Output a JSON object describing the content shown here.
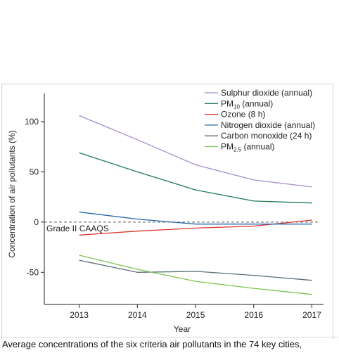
{
  "chart_data": {
    "type": "line",
    "xlabel": "Year",
    "ylabel": "Concentration of air pollutants (%)",
    "x": [
      2013,
      2014,
      2015,
      2016,
      2017
    ],
    "xlim": [
      2012.4,
      2017.2
    ],
    "ylim": [
      -82,
      128
    ],
    "yticks": [
      100,
      50,
      0,
      -50
    ],
    "ytick_labels": [
      "100",
      "50",
      "0",
      "-50"
    ],
    "xtick_labels": [
      "2013",
      "2014",
      "2015",
      "2016",
      "2017"
    ],
    "grid": false,
    "legend_position": "top-right",
    "reference_line": {
      "y": 0,
      "label": "Grade II CAAQS",
      "style": "dashed",
      "color": "#7a7a7a"
    },
    "series": [
      {
        "name": "Sulphur dioxide (annual)",
        "color": "#a58bcd",
        "values": [
          106,
          82,
          57,
          42,
          35
        ]
      },
      {
        "name": "PM10 (annual)",
        "color": "#1f7a4f",
        "values": [
          69,
          50,
          32,
          21,
          19
        ]
      },
      {
        "name": "Ozone (8 h)",
        "color": "#e0342d",
        "values": [
          -13,
          -9,
          -6,
          -4,
          2
        ]
      },
      {
        "name": "Nitrogen dioxide (annual)",
        "color": "#2166ac",
        "values": [
          10,
          3,
          -2,
          -2,
          -2
        ]
      },
      {
        "name": "Carbon monoxide (24 h)",
        "color": "#5a6f78",
        "values": [
          -38,
          -50,
          -49,
          -53,
          -58
        ]
      },
      {
        "name": "PM2.5 (annual)",
        "color": "#7cc34f",
        "values": [
          -33,
          -47,
          -59,
          -66,
          -72
        ]
      }
    ],
    "legend_entries": [
      {
        "base": "Sulphur dioxide (annual)",
        "sub": "",
        "rest": ""
      },
      {
        "base": "PM",
        "sub": "10",
        "rest": " (annual)"
      },
      {
        "base": "Ozone (8 h)",
        "sub": "",
        "rest": ""
      },
      {
        "base": "Nitrogen dioxide (annual)",
        "sub": "",
        "rest": ""
      },
      {
        "base": "Carbon monoxide (24 h)",
        "sub": "",
        "rest": ""
      },
      {
        "base": "PM",
        "sub": "2.5",
        "rest": " (annual)"
      }
    ]
  },
  "caption": "Average concentrations of the six criteria air pollutants in the 74 key cities,"
}
